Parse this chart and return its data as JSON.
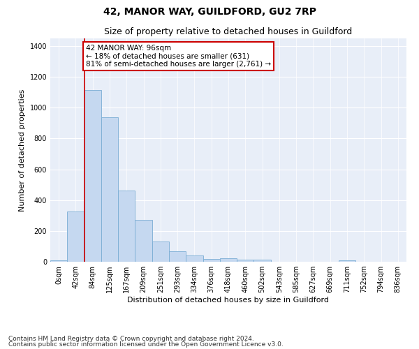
{
  "title": "42, MANOR WAY, GUILDFORD, GU2 7RP",
  "subtitle": "Size of property relative to detached houses in Guildford",
  "xlabel": "Distribution of detached houses by size in Guildford",
  "ylabel": "Number of detached properties",
  "bar_labels": [
    "0sqm",
    "42sqm",
    "84sqm",
    "125sqm",
    "167sqm",
    "209sqm",
    "251sqm",
    "293sqm",
    "334sqm",
    "376sqm",
    "418sqm",
    "460sqm",
    "502sqm",
    "543sqm",
    "585sqm",
    "627sqm",
    "669sqm",
    "711sqm",
    "752sqm",
    "794sqm",
    "836sqm"
  ],
  "bar_values": [
    8,
    325,
    1115,
    940,
    460,
    270,
    130,
    70,
    40,
    20,
    22,
    15,
    12,
    0,
    0,
    0,
    0,
    8,
    0,
    0,
    0
  ],
  "bar_color": "#c5d8f0",
  "bar_edge_color": "#7aadd4",
  "vline_x": 2,
  "vline_color": "#cc0000",
  "annotation_text": "42 MANOR WAY: 96sqm\n← 18% of detached houses are smaller (631)\n81% of semi-detached houses are larger (2,761) →",
  "annotation_box_color": "#ffffff",
  "annotation_box_edge": "#cc0000",
  "ylim": [
    0,
    1450
  ],
  "yticks": [
    0,
    200,
    400,
    600,
    800,
    1000,
    1200,
    1400
  ],
  "footer_line1": "Contains HM Land Registry data © Crown copyright and database right 2024.",
  "footer_line2": "Contains public sector information licensed under the Open Government Licence v3.0.",
  "fig_bg_color": "#ffffff",
  "plot_bg_color": "#e8eef8",
  "grid_color": "#ffffff",
  "title_fontsize": 10,
  "subtitle_fontsize": 9,
  "axis_label_fontsize": 8,
  "tick_fontsize": 7,
  "annotation_fontsize": 7.5,
  "footer_fontsize": 6.5
}
